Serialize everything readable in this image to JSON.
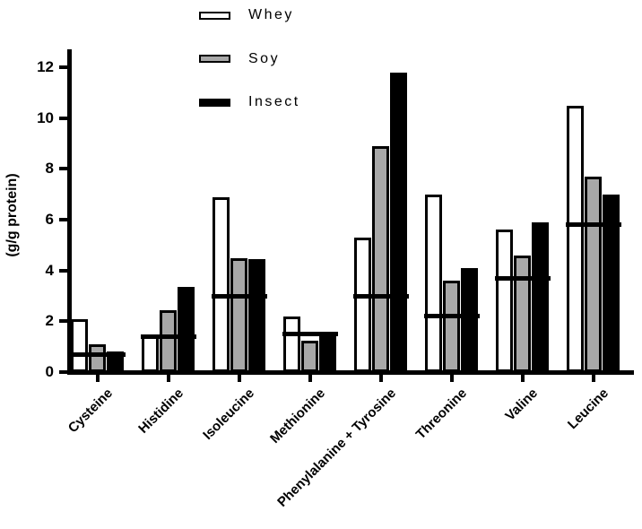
{
  "figure": {
    "background": "#ffffff",
    "axis_color": "#000000"
  },
  "legend": {
    "position": "top-center",
    "items": [
      {
        "label": "Whey",
        "fill": "#ffffff"
      },
      {
        "label": "Soy",
        "fill": "#a8a8a8"
      },
      {
        "label": "Insect",
        "fill": "#000000"
      }
    ]
  },
  "chart_data": {
    "type": "bar",
    "title": "",
    "xlabel": "",
    "ylabel": "(g/g protein)",
    "ylim": [
      0,
      12.7
    ],
    "yticks": [
      0,
      2,
      4,
      6,
      8,
      10,
      12
    ],
    "grid": false,
    "legend_position": "top",
    "categories": [
      "Cysteine",
      "Histidine",
      "Isoleucine",
      "Methionine",
      "Phenylalanine + Tyrosine",
      "Threonine",
      "Valine",
      "Leucine"
    ],
    "series": [
      {
        "name": "Whey",
        "fill": "#ffffff",
        "values": [
          2.1,
          1.5,
          6.9,
          2.2,
          5.3,
          7.0,
          5.6,
          10.5
        ]
      },
      {
        "name": "Soy",
        "fill": "#a8a8a8",
        "values": [
          1.1,
          2.45,
          4.5,
          1.25,
          8.9,
          3.6,
          4.6,
          7.7
        ]
      },
      {
        "name": "Insect",
        "fill": "#000000",
        "values": [
          0.8,
          3.35,
          4.45,
          1.55,
          11.8,
          4.1,
          5.9,
          7.0
        ]
      }
    ],
    "reference_markers": {
      "style": "thick horizontal black line across each category group",
      "values": [
        0.7,
        1.4,
        3.0,
        1.5,
        3.0,
        2.2,
        3.7,
        5.8
      ]
    }
  }
}
